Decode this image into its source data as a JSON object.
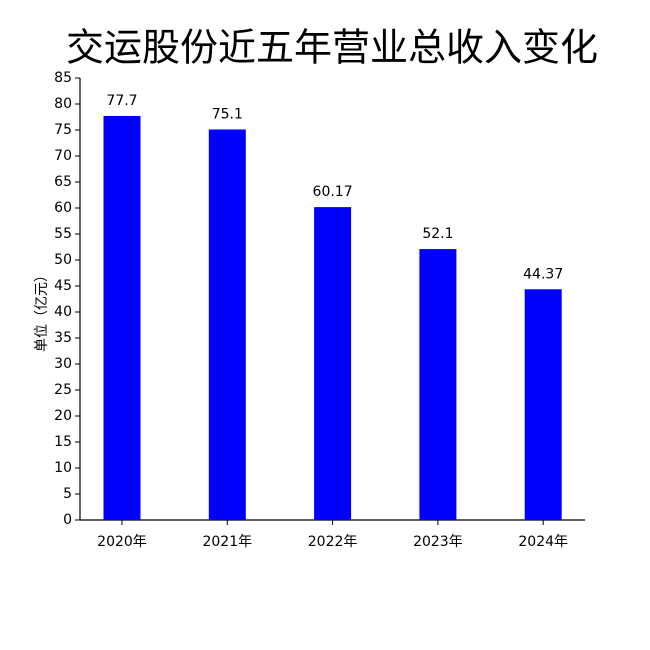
{
  "chart_data": {
    "type": "bar",
    "title": "交运股份近五年营业总收入变化",
    "y_label": "单位（亿元）",
    "categories": [
      "2020年",
      "2021年",
      "2022年",
      "2023年",
      "2024年"
    ],
    "values": [
      77.7,
      75.1,
      60.17,
      52.1,
      44.37
    ],
    "color": "#0000ff",
    "ylim": [
      0,
      85
    ],
    "yticks": [
      0,
      5,
      10,
      15,
      20,
      25,
      30,
      35,
      40,
      45,
      50,
      55,
      60,
      65,
      70,
      75,
      80,
      85
    ]
  }
}
